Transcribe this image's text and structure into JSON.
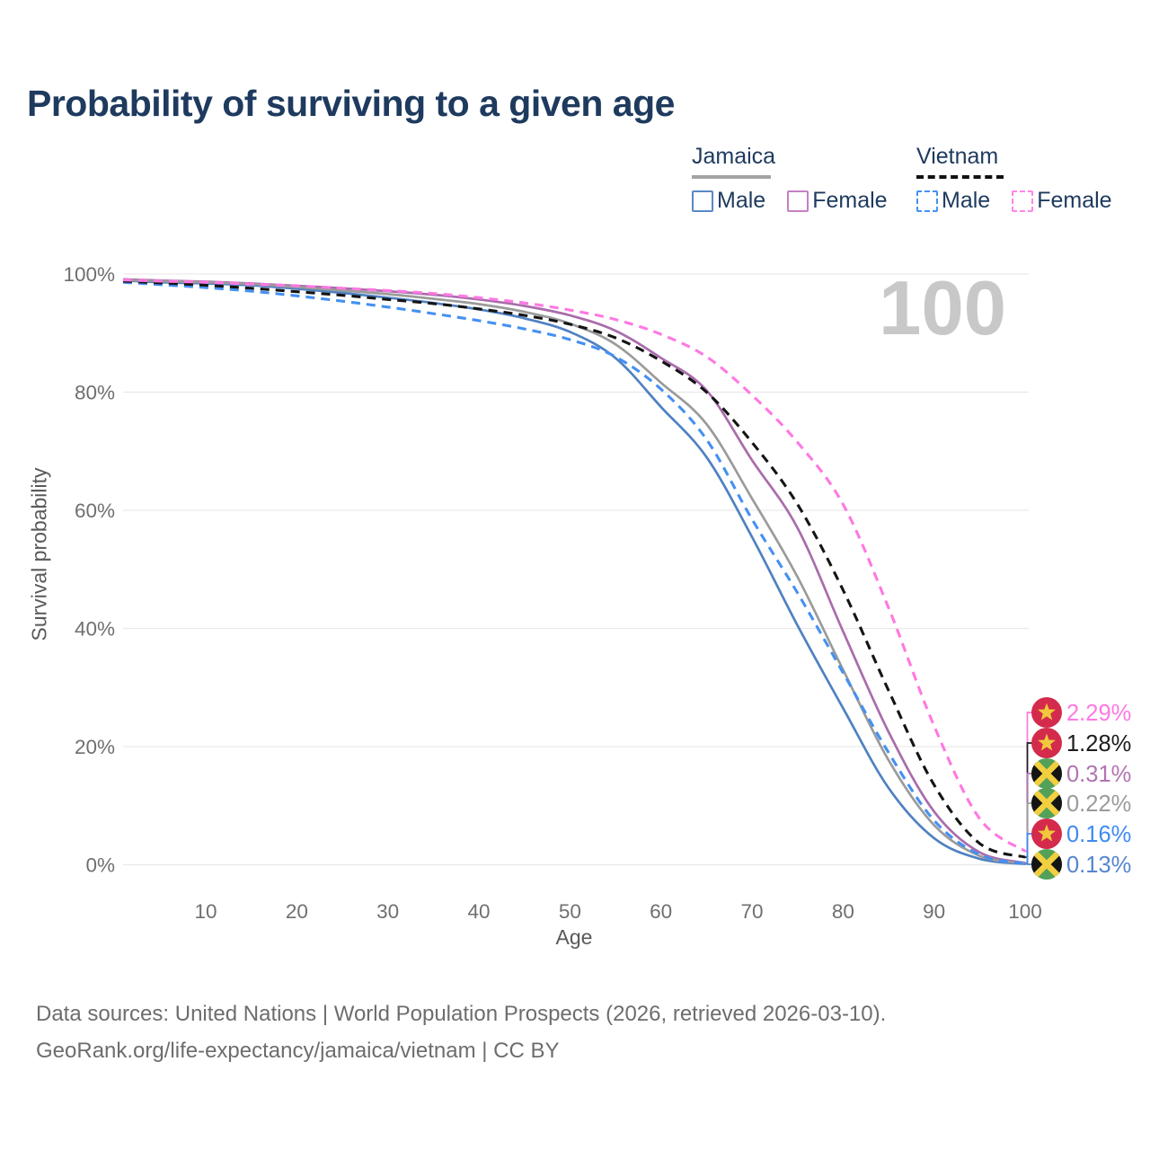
{
  "title": "Probability of surviving to a given age",
  "watermark": "100",
  "legend": {
    "groups": [
      {
        "id": "jamaica",
        "label": "Jamaica",
        "line_style": "solid",
        "underline_color": "#a3a3a3",
        "items": [
          {
            "id": "jamaica-male",
            "label": "Male",
            "color": "#5b87c5",
            "dashed": false
          },
          {
            "id": "jamaica-female",
            "label": "Female",
            "color": "#c480c4",
            "dashed": false
          }
        ]
      },
      {
        "id": "vietnam",
        "label": "Vietnam",
        "line_style": "dashed",
        "underline_color": "#111111",
        "items": [
          {
            "id": "vietnam-male",
            "label": "Male",
            "color": "#4590f2",
            "dashed": true
          },
          {
            "id": "vietnam-female",
            "label": "Female",
            "color": "#ff85e4",
            "dashed": true
          }
        ]
      }
    ]
  },
  "chart_data": {
    "type": "line",
    "title": "Probability of surviving to a given age",
    "xlabel": "Age",
    "ylabel": "Survival probability",
    "xlim": [
      0,
      100
    ],
    "ylim": [
      0,
      100
    ],
    "grid": "horizontal-only",
    "x_ticks": [
      10,
      20,
      30,
      40,
      50,
      60,
      70,
      80,
      90,
      100
    ],
    "y_ticks": [
      {
        "v": 0,
        "label": "0%"
      },
      {
        "v": 20,
        "label": "20%"
      },
      {
        "v": 40,
        "label": "40%"
      },
      {
        "v": 60,
        "label": "60%"
      },
      {
        "v": 80,
        "label": "80%"
      },
      {
        "v": 100,
        "label": "100%"
      }
    ],
    "x": [
      0,
      5,
      10,
      15,
      20,
      25,
      30,
      35,
      40,
      45,
      50,
      55,
      60,
      65,
      70,
      75,
      80,
      85,
      90,
      95,
      100
    ],
    "series": [
      {
        "id": "jamaica-male",
        "name": "Jamaica Male",
        "country": "Jamaica",
        "sex": "Male",
        "color": "#4f81c2",
        "dashed": false,
        "flag": "jamaica",
        "end_label": "0.13%",
        "label_color": "#5585cd",
        "values": [
          98.9,
          98.6,
          98.4,
          98.1,
          97.5,
          96.8,
          96.0,
          95.1,
          94.0,
          92.5,
          90.2,
          85.8,
          77.5,
          69.0,
          55.5,
          40.5,
          26.5,
          13.0,
          4.5,
          1.0,
          0.13
        ]
      },
      {
        "id": "jamaica-female",
        "name": "Jamaica Female",
        "country": "Jamaica",
        "sex": "Female",
        "color": "#aa6cab",
        "dashed": false,
        "flag": "jamaica",
        "end_label": "0.31%",
        "label_color": "#b274b2",
        "values": [
          99.1,
          98.9,
          98.7,
          98.4,
          98.0,
          97.6,
          97.1,
          96.5,
          95.7,
          94.6,
          93.0,
          90.4,
          85.8,
          80.3,
          68.5,
          57.0,
          39.5,
          22.5,
          9.0,
          2.1,
          0.31
        ]
      },
      {
        "id": "jamaica-both",
        "name": "Jamaica (both sexes)",
        "country": "Jamaica",
        "sex": "Both",
        "color": "#9b9b9b",
        "dashed": false,
        "flag": "jamaica",
        "end_label": "0.22%",
        "label_color": "#9b9b9b",
        "values": [
          99.0,
          98.8,
          98.6,
          98.3,
          97.8,
          97.2,
          96.6,
          95.8,
          94.9,
          93.6,
          91.6,
          88.1,
          81.6,
          74.6,
          62.0,
          48.7,
          33.0,
          17.7,
          6.7,
          1.5,
          0.22
        ]
      },
      {
        "id": "vietnam-male",
        "name": "Vietnam Male",
        "country": "Vietnam",
        "sex": "Male",
        "color": "#4590f2",
        "dashed": true,
        "flag": "vietnam",
        "end_label": "0.16%",
        "label_color": "#3e8af3",
        "values": [
          98.6,
          98.2,
          97.7,
          97.1,
          96.3,
          95.4,
          94.4,
          93.3,
          92.1,
          90.7,
          88.9,
          86.0,
          80.5,
          72.0,
          58.5,
          46.0,
          32.5,
          19.0,
          7.5,
          1.7,
          0.16
        ]
      },
      {
        "id": "vietnam-both",
        "name": "Vietnam (both sexes)",
        "country": "Vietnam",
        "sex": "Both",
        "color": "#141414",
        "dashed": true,
        "flag": "vietnam",
        "end_label": "1.28%",
        "label_color": "#1c1c1c",
        "values": [
          98.8,
          98.5,
          98.1,
          97.6,
          97.0,
          96.4,
          95.7,
          95.0,
          94.1,
          93.0,
          91.5,
          89.2,
          85.3,
          80.0,
          71.5,
          61.0,
          46.5,
          29.5,
          13.5,
          3.6,
          1.28
        ]
      },
      {
        "id": "vietnam-female",
        "name": "Vietnam Female",
        "country": "Vietnam",
        "sex": "Female",
        "color": "#ff78e2",
        "dashed": true,
        "flag": "vietnam",
        "end_label": "2.29%",
        "label_color": "#ff78e2",
        "values": [
          99.0,
          98.8,
          98.6,
          98.3,
          98.0,
          97.6,
          97.2,
          96.7,
          96.0,
          95.1,
          93.9,
          92.3,
          89.8,
          86.0,
          79.5,
          71.5,
          61.0,
          43.5,
          23.5,
          7.8,
          2.29
        ]
      }
    ],
    "flag_colors": {
      "vietnam_red": "#d42a4c",
      "vietnam_star": "#f0c83c",
      "jamaica_green": "#53a158",
      "jamaica_black": "#141414",
      "jamaica_gold": "#f2cf3f"
    }
  },
  "footer": {
    "line1": "Data sources: United Nations | World Population Prospects (2026, retrieved 2026-03-10).",
    "line2": "GeoRank.org/life-expectancy/jamaica/vietnam | CC BY"
  }
}
